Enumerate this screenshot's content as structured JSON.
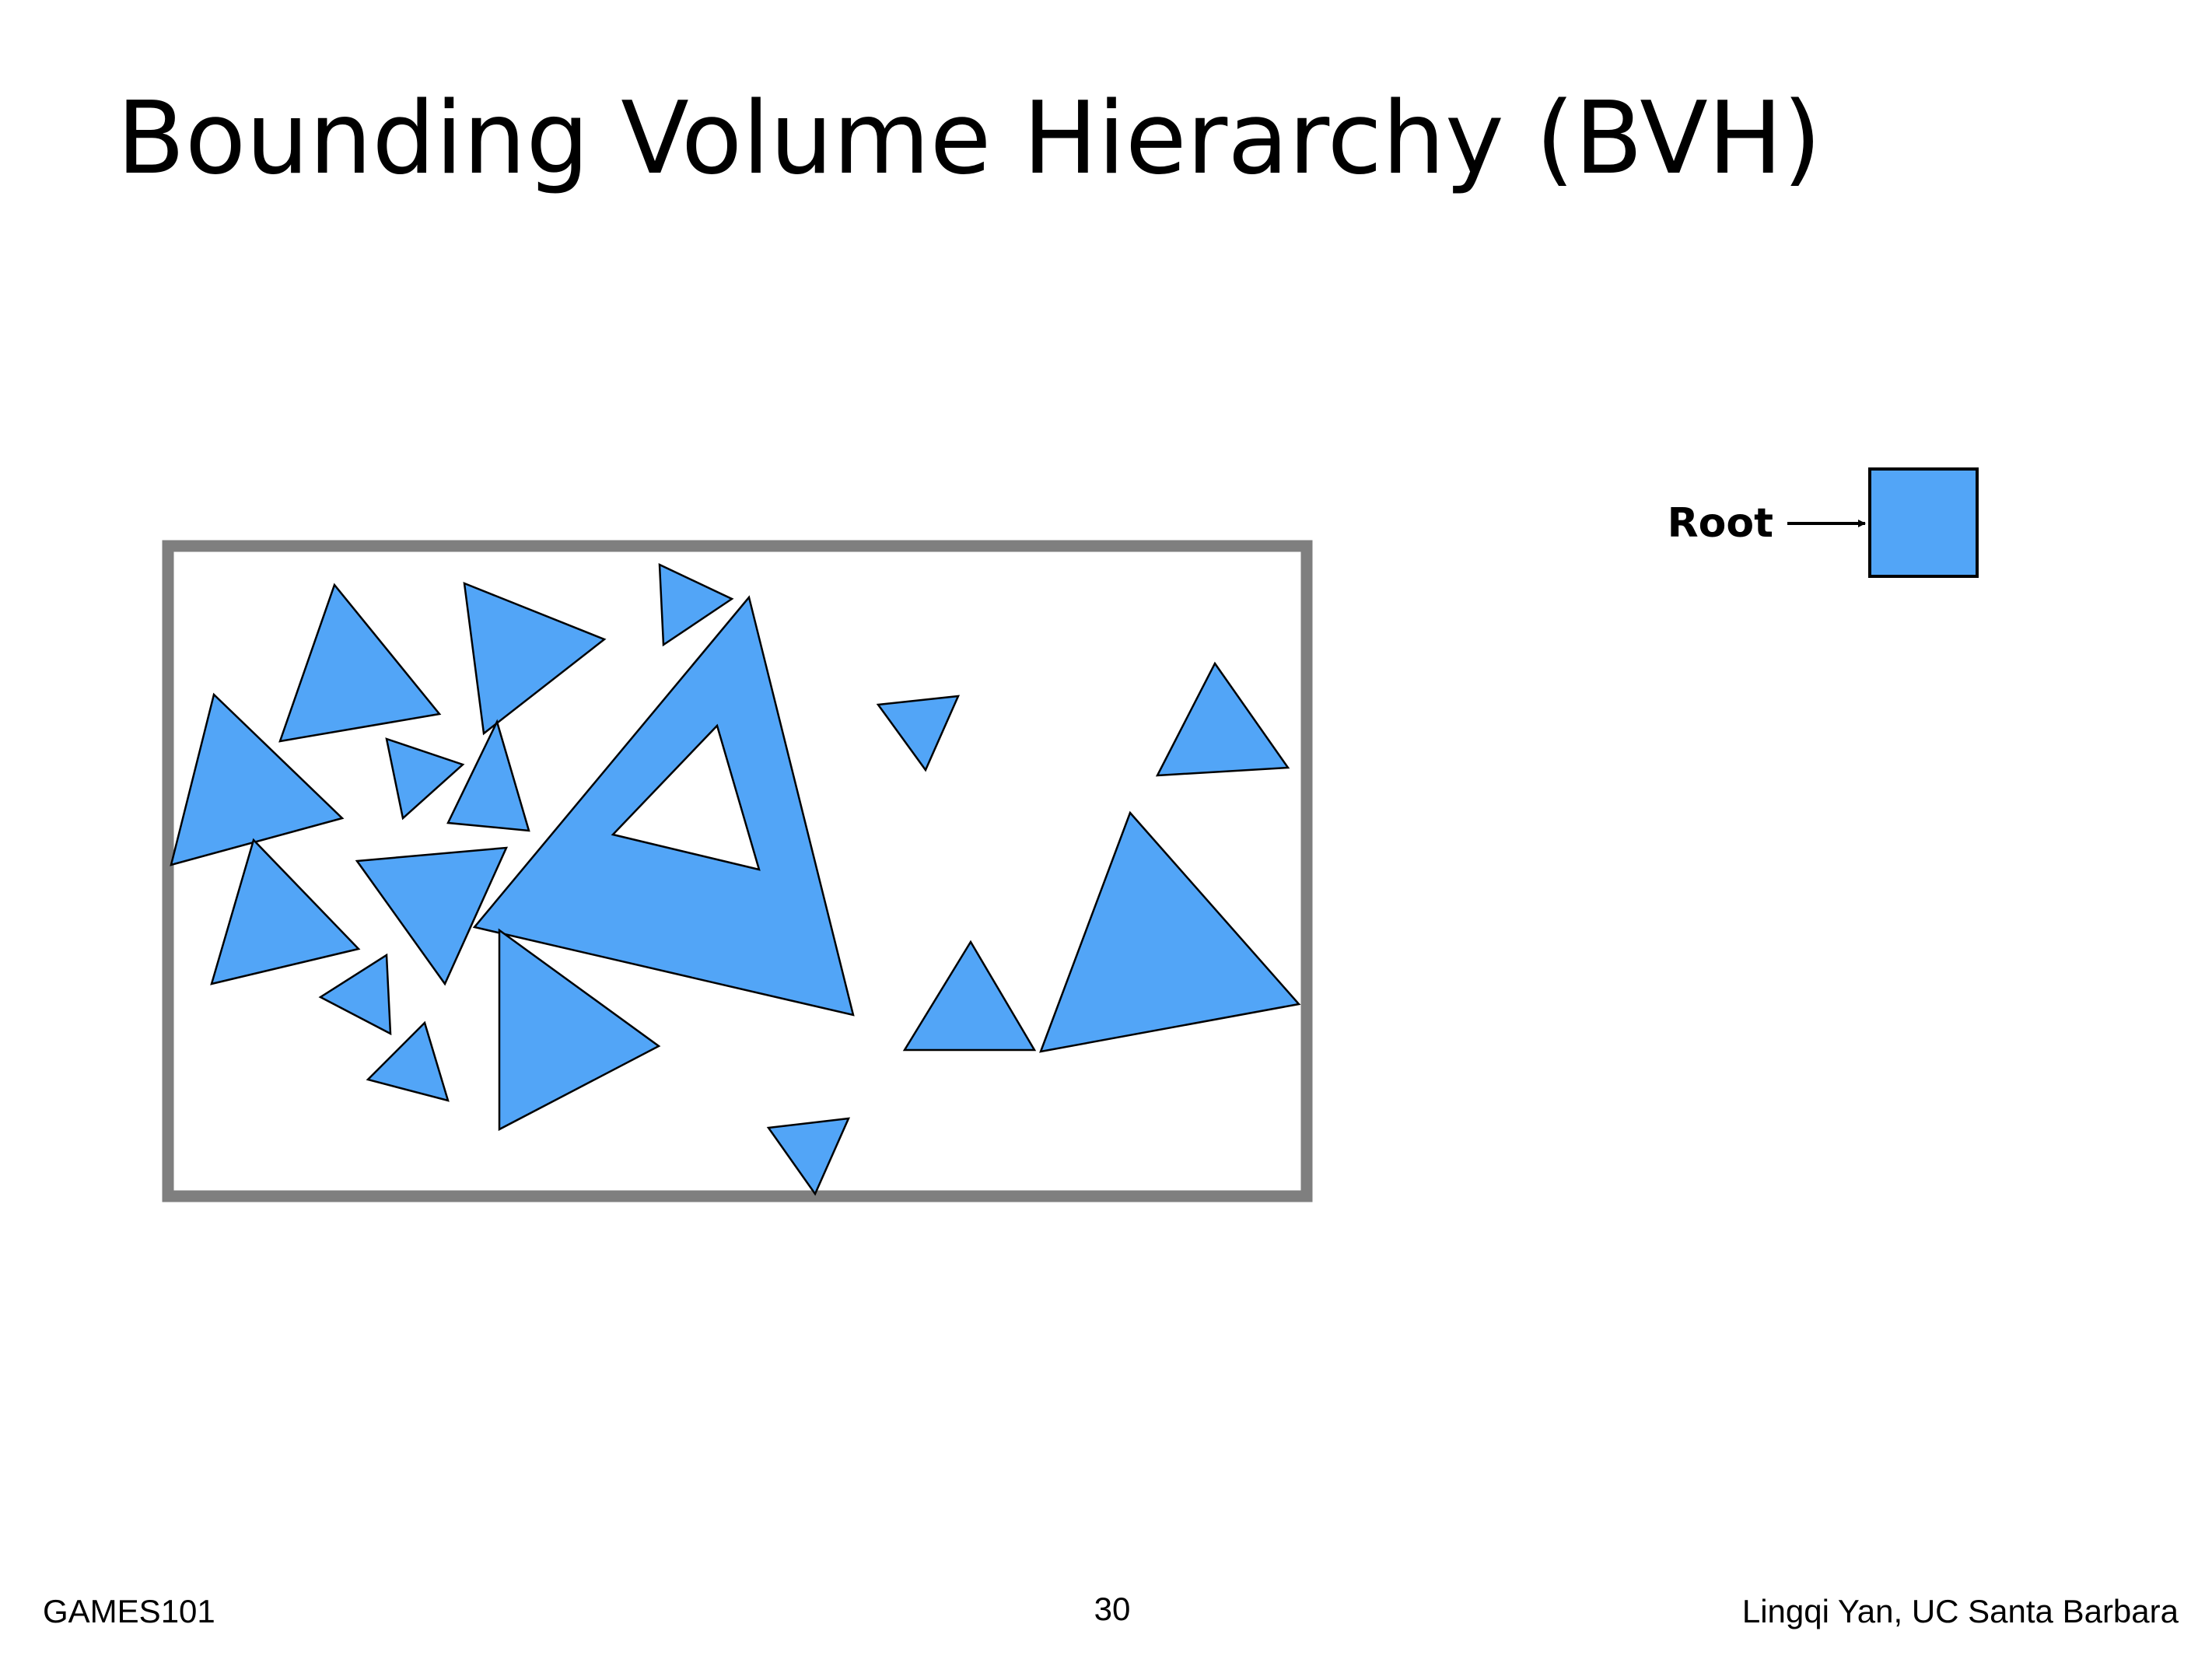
{
  "slide": {
    "title": "Bounding Volume Hierarchy (BVH)"
  },
  "tree": {
    "root_label": "Root"
  },
  "footer": {
    "course": "GAMES101",
    "page_number": "30",
    "author": "Lingqi Yan, UC Santa Barbara"
  },
  "colors": {
    "triangle_fill": "#52a5f7",
    "triangle_stroke": "#000000",
    "bounding_box_stroke": "#7f7f7f",
    "tree_node_fill": "#52a5f7"
  }
}
